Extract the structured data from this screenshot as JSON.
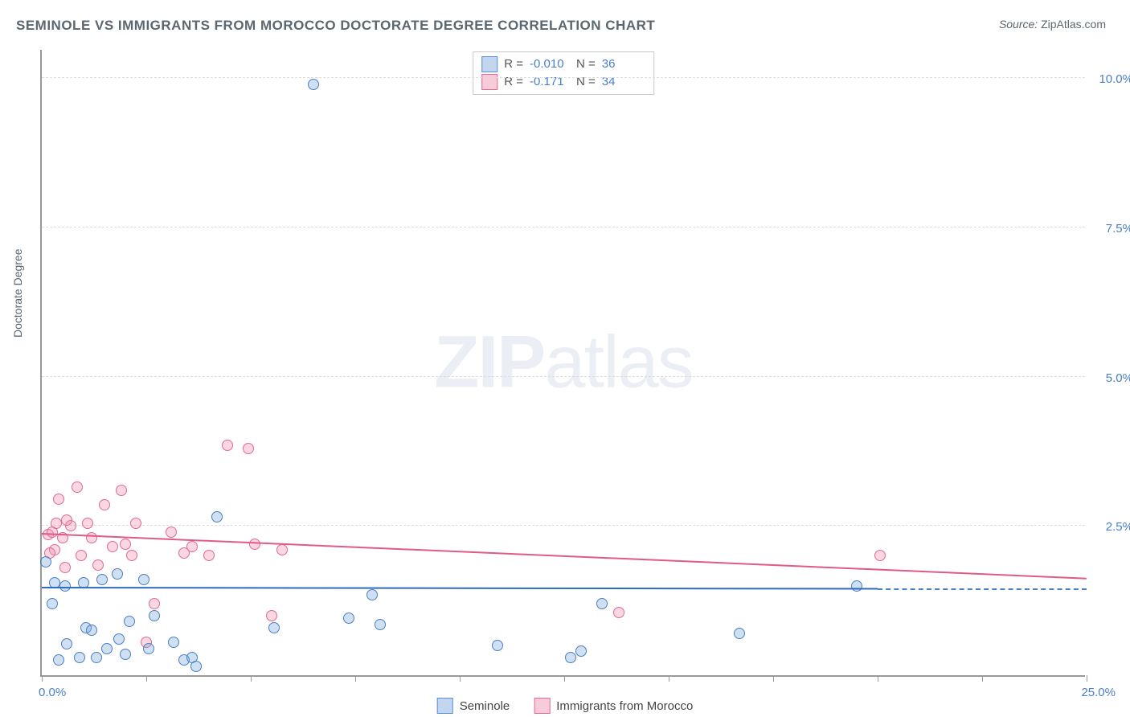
{
  "title": "SEMINOLE VS IMMIGRANTS FROM MOROCCO DOCTORATE DEGREE CORRELATION CHART",
  "source_label": "Source:",
  "source_value": "ZipAtlas.com",
  "watermark_a": "ZIP",
  "watermark_b": "atlas",
  "chart": {
    "type": "scatter",
    "ylabel": "Doctorate Degree",
    "xlim": [
      0,
      25
    ],
    "ylim": [
      0,
      10.5
    ],
    "y_ticks": [
      2.5,
      5.0,
      7.5,
      10.0
    ],
    "y_tick_labels": [
      "2.5%",
      "5.0%",
      "7.5%",
      "10.0%"
    ],
    "x_ticks": [
      0,
      2.5,
      5,
      7.5,
      10,
      12.5,
      15,
      17.5,
      20,
      22.5,
      25
    ],
    "origin_label": "0.0%",
    "xmax_label": "25.0%",
    "plot_bg": "#ffffff",
    "grid_color": "#dcdcdc",
    "series": {
      "seminole": {
        "label": "Seminole",
        "color_fill": "rgba(120,165,220,0.35)",
        "color_stroke": "#4a7fc4",
        "R": "-0.010",
        "N": "36",
        "points": [
          [
            0.1,
            1.9
          ],
          [
            6.5,
            9.9
          ],
          [
            0.3,
            1.55
          ],
          [
            0.4,
            0.25
          ],
          [
            0.55,
            1.5
          ],
          [
            0.6,
            0.52
          ],
          [
            0.9,
            0.3
          ],
          [
            1.0,
            1.55
          ],
          [
            1.05,
            0.8
          ],
          [
            1.2,
            0.75
          ],
          [
            1.3,
            0.3
          ],
          [
            1.45,
            1.6
          ],
          [
            1.55,
            0.45
          ],
          [
            1.8,
            1.7
          ],
          [
            1.85,
            0.6
          ],
          [
            2.0,
            0.35
          ],
          [
            2.1,
            0.9
          ],
          [
            2.45,
            1.6
          ],
          [
            2.55,
            0.45
          ],
          [
            2.7,
            1.0
          ],
          [
            3.15,
            0.55
          ],
          [
            3.4,
            0.25
          ],
          [
            3.6,
            0.3
          ],
          [
            3.7,
            0.15
          ],
          [
            4.2,
            2.65
          ],
          [
            5.55,
            0.8
          ],
          [
            7.35,
            0.95
          ],
          [
            7.9,
            1.35
          ],
          [
            8.1,
            0.85
          ],
          [
            10.9,
            0.5
          ],
          [
            12.65,
            0.3
          ],
          [
            12.9,
            0.4
          ],
          [
            13.4,
            1.2
          ],
          [
            16.7,
            0.7
          ],
          [
            19.5,
            1.5
          ],
          [
            0.25,
            1.2
          ]
        ],
        "trend": {
          "y_at_x0": 1.45,
          "y_at_x20": 1.43,
          "dash_from_x": 20,
          "dash_to_x": 25
        }
      },
      "morocco": {
        "label": "Immigrants from Morocco",
        "color_fill": "rgba(240,140,170,0.35)",
        "color_stroke": "#e06a93",
        "R": "-0.171",
        "N": "34",
        "points": [
          [
            0.15,
            2.35
          ],
          [
            0.25,
            2.4
          ],
          [
            0.3,
            2.1
          ],
          [
            0.4,
            2.95
          ],
          [
            0.5,
            2.3
          ],
          [
            0.55,
            1.8
          ],
          [
            0.7,
            2.5
          ],
          [
            0.85,
            3.15
          ],
          [
            0.95,
            2.0
          ],
          [
            1.1,
            2.55
          ],
          [
            1.35,
            1.85
          ],
          [
            1.5,
            2.85
          ],
          [
            1.7,
            2.15
          ],
          [
            1.9,
            3.1
          ],
          [
            2.0,
            2.2
          ],
          [
            2.15,
            2.0
          ],
          [
            2.25,
            2.55
          ],
          [
            2.5,
            0.55
          ],
          [
            2.7,
            1.2
          ],
          [
            3.1,
            2.4
          ],
          [
            3.4,
            2.05
          ],
          [
            3.6,
            2.15
          ],
          [
            4.45,
            3.85
          ],
          [
            4.95,
            3.8
          ],
          [
            5.1,
            2.2
          ],
          [
            5.5,
            1.0
          ],
          [
            5.75,
            2.1
          ],
          [
            13.8,
            1.05
          ],
          [
            20.05,
            2.0
          ],
          [
            0.2,
            2.05
          ],
          [
            0.35,
            2.55
          ],
          [
            0.6,
            2.6
          ],
          [
            1.2,
            2.3
          ],
          [
            4.0,
            2.0
          ]
        ],
        "trend": {
          "y_at_x0": 2.35,
          "y_at_x25": 1.6
        }
      }
    }
  },
  "legend_top": {
    "rows": [
      {
        "swatch": "blue",
        "r_label": "R =",
        "r_val": "-0.010",
        "n_label": "N =",
        "n_val": "36"
      },
      {
        "swatch": "pink",
        "r_label": "R =",
        "r_val": "-0.171",
        "n_label": "N =",
        "n_val": "34"
      }
    ]
  },
  "legend_bottom": [
    {
      "swatch": "blue",
      "label": "Seminole"
    },
    {
      "swatch": "pink",
      "label": "Immigrants from Morocco"
    }
  ]
}
